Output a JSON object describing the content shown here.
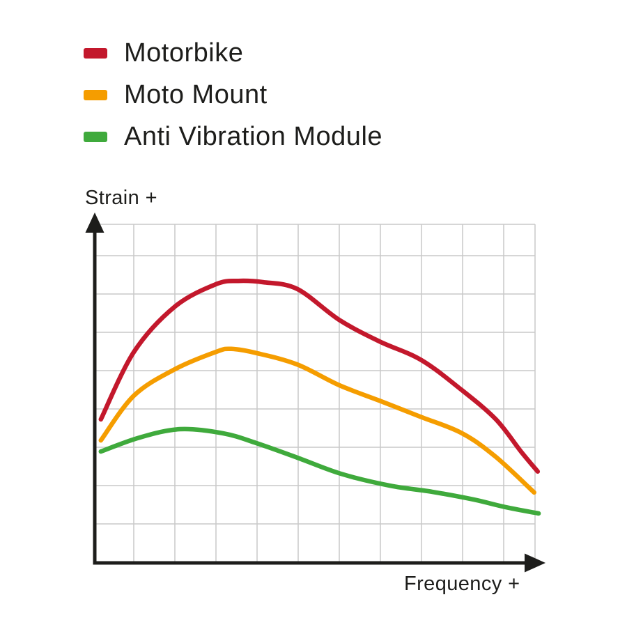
{
  "legend": {
    "items": [
      {
        "label": "Motorbike",
        "color": "#c3182c"
      },
      {
        "label": "Moto Mount",
        "color": "#f59d00"
      },
      {
        "label": "Anti Vibration Module",
        "color": "#3faa3c"
      }
    ]
  },
  "axes": {
    "y_label": "Strain +",
    "x_label": "Frequency +"
  },
  "colors": {
    "ink": "#1d1d1b",
    "grid": "#c9c9c9",
    "background": "#ffffff"
  },
  "chart_data": {
    "type": "line",
    "title": "",
    "xlabel": "Frequency +",
    "ylabel": "Strain +",
    "x_range": [
      0,
      100
    ],
    "y_range": [
      0,
      100
    ],
    "grid": true,
    "axis_numeric_ticks": false,
    "legend_position": "top-left",
    "series": [
      {
        "name": "Motorbike",
        "color": "#c3182c",
        "points": [
          [
            1.4,
            42.4
          ],
          [
            8.9,
            62.3
          ],
          [
            18.2,
            75.7
          ],
          [
            27.5,
            82.3
          ],
          [
            32.6,
            83.3
          ],
          [
            38.3,
            82.9
          ],
          [
            46.0,
            80.9
          ],
          [
            55.5,
            71.8
          ],
          [
            64.7,
            65.4
          ],
          [
            74.2,
            59.9
          ],
          [
            83.4,
            51.0
          ],
          [
            91.1,
            42.4
          ],
          [
            96.8,
            32.9
          ],
          [
            100.6,
            27.0
          ]
        ]
      },
      {
        "name": "Moto Mount",
        "color": "#f59d00",
        "points": [
          [
            1.4,
            36.2
          ],
          [
            8.9,
            49.4
          ],
          [
            18.2,
            57.2
          ],
          [
            27.5,
            62.3
          ],
          [
            31.0,
            63.2
          ],
          [
            37.0,
            61.9
          ],
          [
            46.0,
            58.6
          ],
          [
            55.5,
            52.5
          ],
          [
            64.7,
            47.9
          ],
          [
            73.9,
            43.2
          ],
          [
            83.4,
            38.3
          ],
          [
            91.1,
            31.3
          ],
          [
            99.8,
            20.8
          ]
        ]
      },
      {
        "name": "Anti Vibration Module",
        "color": "#3faa3c",
        "points": [
          [
            1.4,
            32.9
          ],
          [
            10.1,
            37.0
          ],
          [
            19.3,
            39.5
          ],
          [
            29.1,
            38.3
          ],
          [
            36.7,
            35.4
          ],
          [
            46.0,
            31.1
          ],
          [
            56.0,
            26.3
          ],
          [
            67.1,
            22.8
          ],
          [
            76.6,
            21.0
          ],
          [
            86.1,
            18.7
          ],
          [
            93.2,
            16.5
          ],
          [
            100.8,
            14.6
          ]
        ]
      }
    ]
  }
}
